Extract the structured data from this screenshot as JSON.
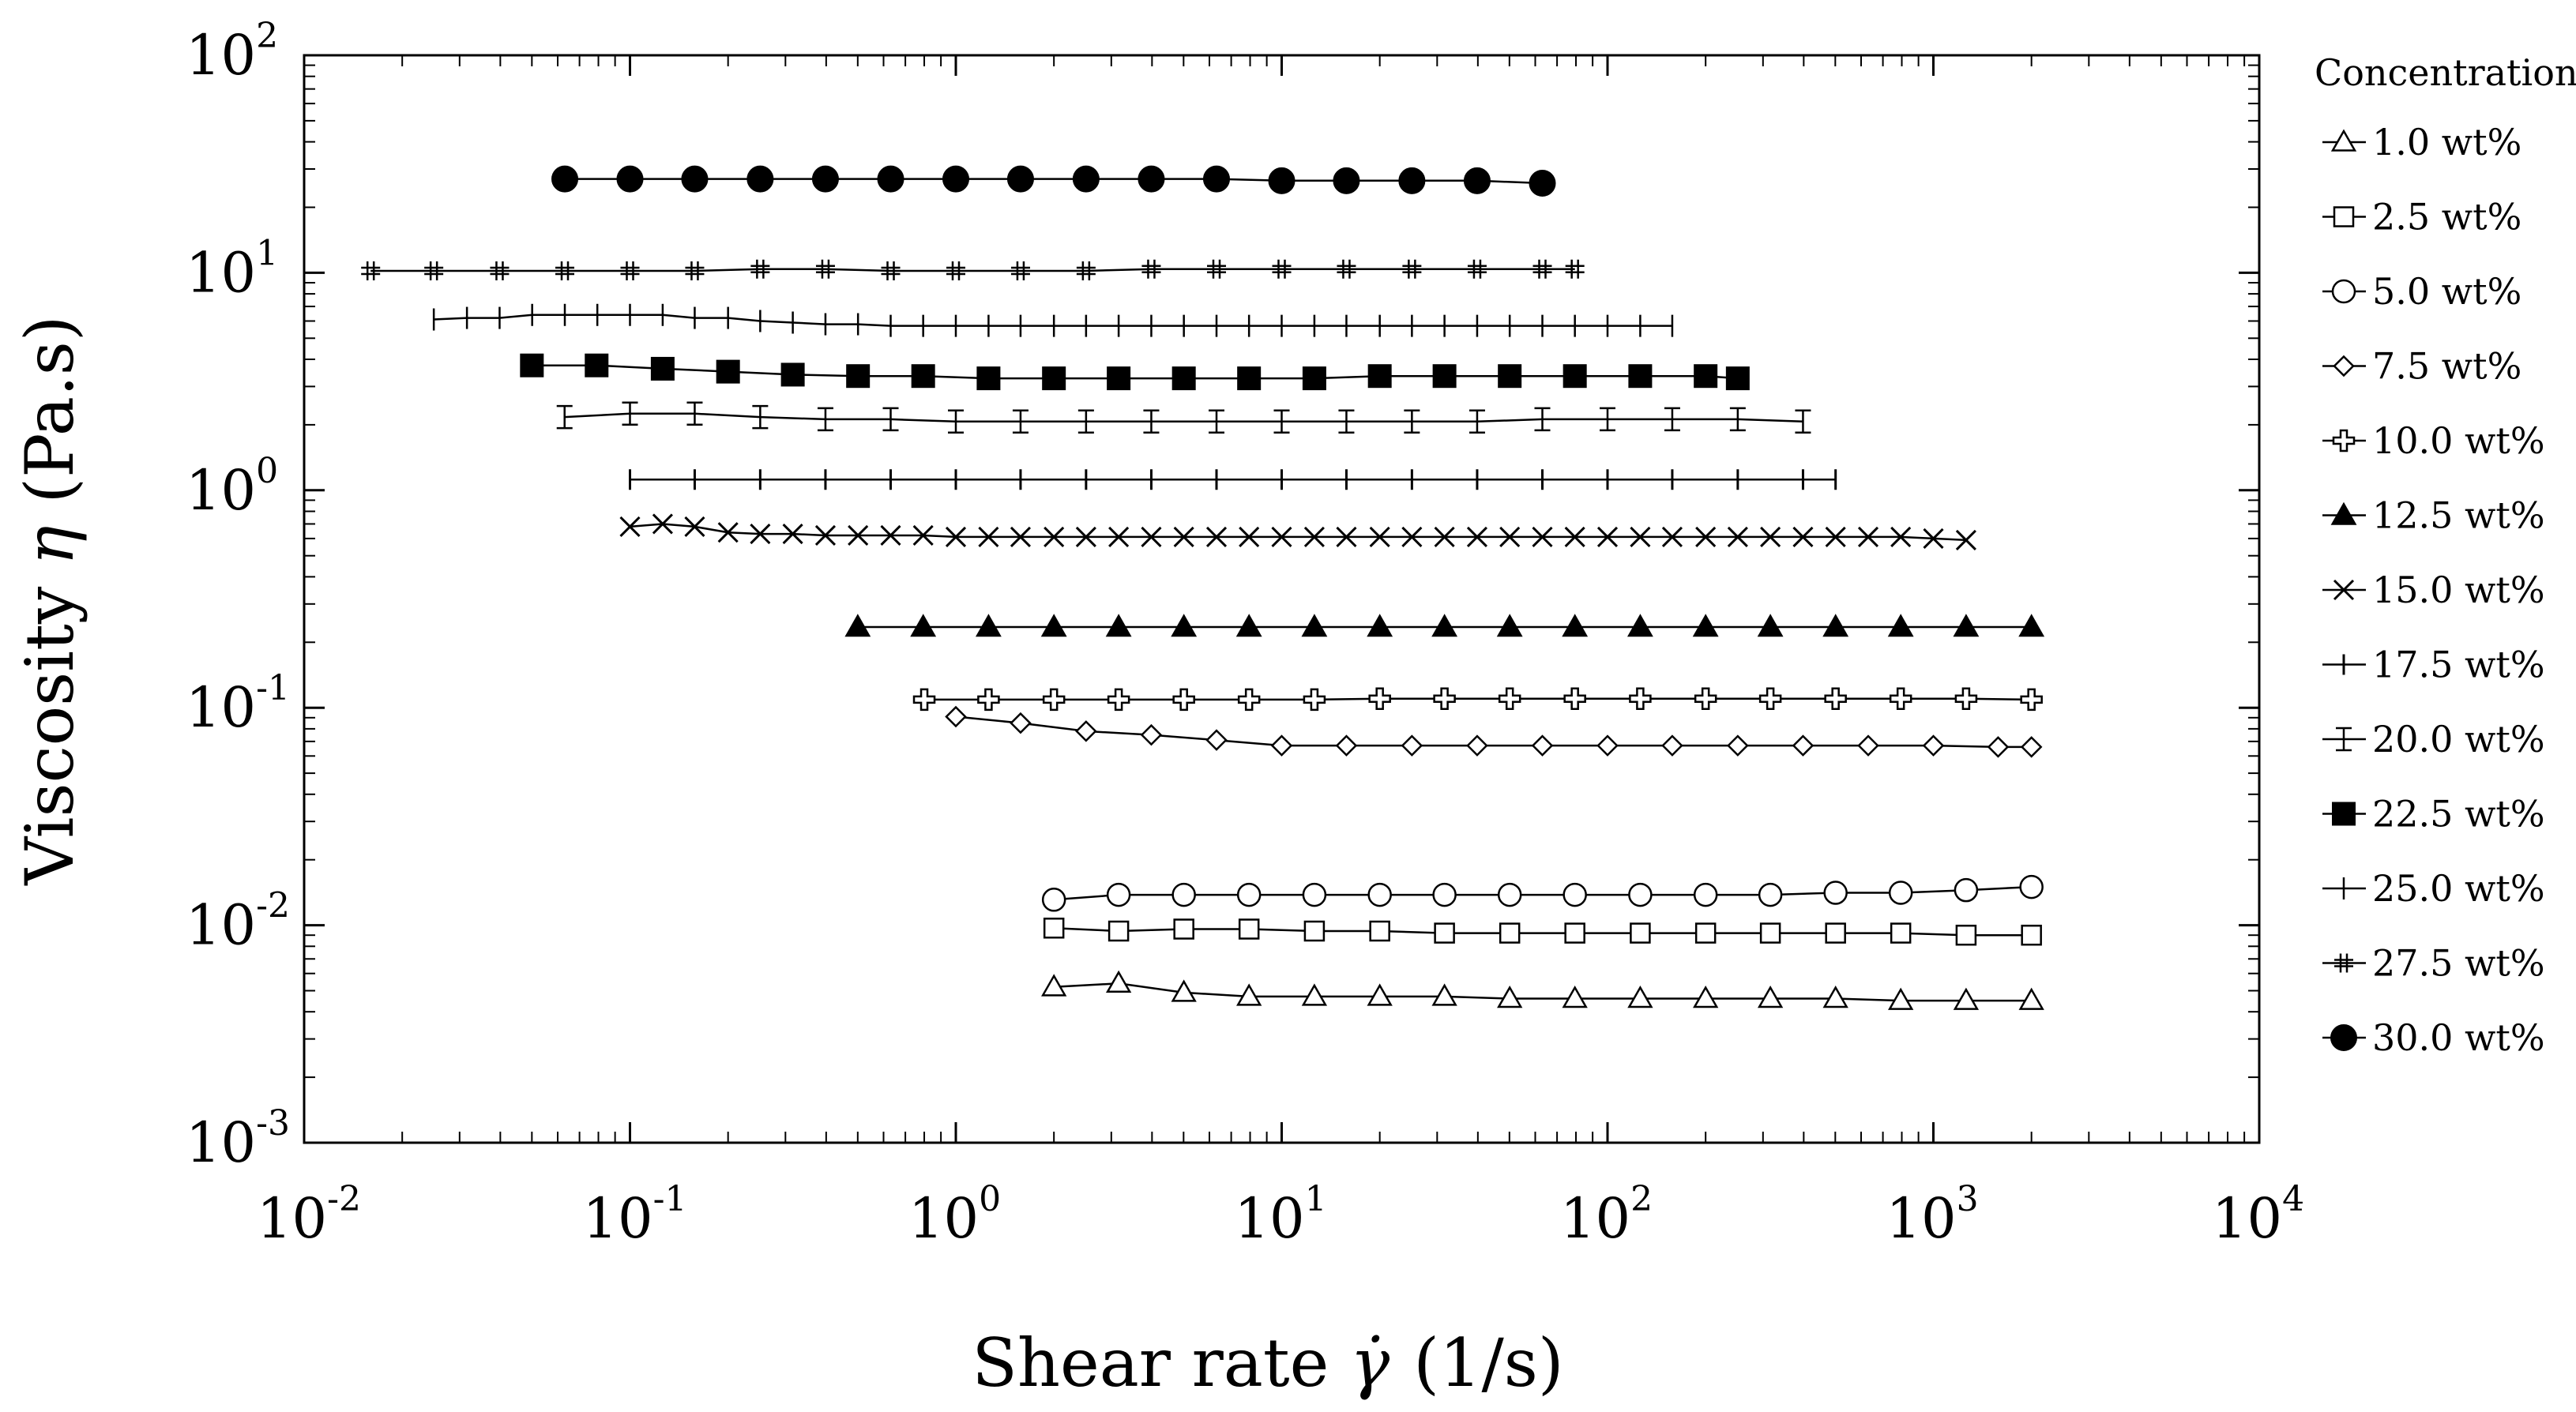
{
  "chart_data": {
    "type": "scatter",
    "x_scale": "log",
    "y_scale": "log",
    "xlim": [
      0.01,
      10000
    ],
    "ylim": [
      0.001,
      100
    ],
    "x_tick_labels": [
      {
        "base": "10",
        "exp": "-2"
      },
      {
        "base": "10",
        "exp": "-1"
      },
      {
        "base": "10",
        "exp": "0"
      },
      {
        "base": "10",
        "exp": "1"
      },
      {
        "base": "10",
        "exp": "2"
      },
      {
        "base": "10",
        "exp": "3"
      },
      {
        "base": "10",
        "exp": "4"
      }
    ],
    "y_tick_labels": [
      {
        "base": "10",
        "exp": "-3"
      },
      {
        "base": "10",
        "exp": "-2"
      },
      {
        "base": "10",
        "exp": "-1"
      },
      {
        "base": "10",
        "exp": "0"
      },
      {
        "base": "10",
        "exp": "1"
      },
      {
        "base": "10",
        "exp": "2"
      }
    ],
    "xlabel": {
      "prefix": "Shear rate ",
      "symbol": "γ̇",
      "unit": "(1/s)"
    },
    "ylabel": {
      "prefix": "Viscosity ",
      "symbol": "η",
      "unit": "(Pa.s)"
    },
    "legend": {
      "title": "Concentration",
      "position": "right"
    },
    "grid": false,
    "series": [
      {
        "name": "1.0 wt%",
        "marker": "triangle-open",
        "x": [
          2,
          3.16,
          5.01,
          7.94,
          12.6,
          20,
          31.6,
          50.1,
          79.4,
          126,
          200,
          316,
          501,
          794,
          1260,
          2000
        ],
        "y": [
          0.0052,
          0.0054,
          0.0049,
          0.0047,
          0.0047,
          0.0047,
          0.0047,
          0.0046,
          0.0046,
          0.0046,
          0.0046,
          0.0046,
          0.0046,
          0.0045,
          0.0045,
          0.0045
        ]
      },
      {
        "name": "2.5 wt%",
        "marker": "square-open",
        "x": [
          2,
          3.16,
          5.01,
          7.94,
          12.6,
          20,
          31.6,
          50.1,
          79.4,
          126,
          200,
          316,
          501,
          794,
          1260,
          2000
        ],
        "y": [
          0.0097,
          0.0094,
          0.0096,
          0.0096,
          0.0094,
          0.0094,
          0.0092,
          0.0092,
          0.0092,
          0.0092,
          0.0092,
          0.0092,
          0.0092,
          0.0092,
          0.009,
          0.009
        ]
      },
      {
        "name": "5.0 wt%",
        "marker": "circle-open",
        "x": [
          2,
          3.16,
          5.01,
          7.94,
          12.6,
          20,
          31.6,
          50.1,
          79.4,
          126,
          200,
          316,
          501,
          794,
          1260,
          2000
        ],
        "y": [
          0.0131,
          0.0138,
          0.0138,
          0.0138,
          0.0138,
          0.0138,
          0.0138,
          0.0138,
          0.0138,
          0.0138,
          0.0138,
          0.0138,
          0.0141,
          0.0141,
          0.0145,
          0.015
        ]
      },
      {
        "name": "7.5 wt%",
        "marker": "diamond-open",
        "x": [
          1,
          1.58,
          2.51,
          3.98,
          6.31,
          10,
          15.8,
          25.1,
          39.8,
          63.1,
          100,
          158,
          251,
          398,
          631,
          1000,
          1580,
          2000
        ],
        "y": [
          0.091,
          0.085,
          0.078,
          0.075,
          0.071,
          0.067,
          0.067,
          0.067,
          0.067,
          0.067,
          0.067,
          0.067,
          0.067,
          0.067,
          0.067,
          0.067,
          0.066,
          0.066
        ]
      },
      {
        "name": "10.0 wt%",
        "marker": "cross-open",
        "x": [
          0.8,
          1.26,
          2,
          3.16,
          5.01,
          7.94,
          12.6,
          20,
          31.6,
          50.1,
          79.4,
          126,
          200,
          316,
          501,
          794,
          1260,
          2000
        ],
        "y": [
          0.109,
          0.109,
          0.109,
          0.109,
          0.109,
          0.109,
          0.109,
          0.11,
          0.11,
          0.11,
          0.11,
          0.11,
          0.11,
          0.11,
          0.11,
          0.11,
          0.11,
          0.109
        ]
      },
      {
        "name": "12.5 wt%",
        "marker": "triangle-filled",
        "x": [
          0.5,
          0.794,
          1.26,
          2,
          3.16,
          5.01,
          7.94,
          12.6,
          20,
          31.6,
          50.1,
          79.4,
          126,
          200,
          316,
          501,
          794,
          1260,
          2000
        ],
        "y": [
          0.235,
          0.235,
          0.235,
          0.235,
          0.235,
          0.235,
          0.235,
          0.235,
          0.235,
          0.235,
          0.235,
          0.235,
          0.235,
          0.235,
          0.235,
          0.235,
          0.235,
          0.235,
          0.235
        ]
      },
      {
        "name": "15.0 wt%",
        "marker": "x",
        "x": [
          0.1,
          0.126,
          0.158,
          0.2,
          0.251,
          0.316,
          0.398,
          0.501,
          0.631,
          0.794,
          1,
          1.26,
          1.58,
          2,
          2.51,
          3.16,
          3.98,
          5.01,
          6.31,
          7.94,
          10,
          12.6,
          15.8,
          20,
          25.1,
          31.6,
          39.8,
          50.1,
          63.1,
          79.4,
          100,
          126,
          158,
          200,
          251,
          316,
          398,
          501,
          631,
          794,
          1000,
          1260
        ],
        "y": [
          0.68,
          0.7,
          0.68,
          0.64,
          0.63,
          0.63,
          0.62,
          0.62,
          0.62,
          0.62,
          0.61,
          0.61,
          0.61,
          0.61,
          0.61,
          0.61,
          0.61,
          0.61,
          0.61,
          0.61,
          0.61,
          0.61,
          0.61,
          0.61,
          0.61,
          0.61,
          0.61,
          0.61,
          0.61,
          0.61,
          0.61,
          0.61,
          0.61,
          0.61,
          0.61,
          0.61,
          0.61,
          0.61,
          0.61,
          0.61,
          0.6,
          0.59
        ]
      },
      {
        "name": "17.5 wt%",
        "marker": "plus",
        "x": [
          0.1,
          0.158,
          0.251,
          0.398,
          0.631,
          1,
          1.58,
          2.51,
          3.98,
          6.31,
          10,
          15.8,
          25.1,
          39.8,
          63.1,
          100,
          158,
          251,
          398,
          501
        ],
        "y": [
          1.12,
          1.12,
          1.12,
          1.12,
          1.12,
          1.12,
          1.12,
          1.12,
          1.12,
          1.12,
          1.12,
          1.12,
          1.12,
          1.12,
          1.12,
          1.12,
          1.12,
          1.12,
          1.12,
          1.12
        ]
      },
      {
        "name": "20.0 wt%",
        "marker": "ibeam",
        "x": [
          0.063,
          0.1,
          0.158,
          0.251,
          0.398,
          0.631,
          1,
          1.58,
          2.51,
          3.98,
          6.31,
          10,
          15.8,
          25.1,
          39.8,
          63.1,
          100,
          158,
          251,
          398
        ],
        "y": [
          2.17,
          2.25,
          2.25,
          2.17,
          2.12,
          2.12,
          2.07,
          2.07,
          2.07,
          2.07,
          2.07,
          2.07,
          2.07,
          2.07,
          2.07,
          2.12,
          2.12,
          2.12,
          2.12,
          2.07
        ]
      },
      {
        "name": "22.5 wt%",
        "marker": "square-filled",
        "x": [
          0.05,
          0.079,
          0.126,
          0.2,
          0.316,
          0.501,
          0.794,
          1.26,
          2,
          3.16,
          5.01,
          7.94,
          12.6,
          20,
          31.6,
          50.1,
          79.4,
          126,
          200,
          251
        ],
        "y": [
          3.75,
          3.75,
          3.62,
          3.51,
          3.4,
          3.35,
          3.35,
          3.27,
          3.27,
          3.27,
          3.27,
          3.27,
          3.27,
          3.35,
          3.35,
          3.35,
          3.35,
          3.35,
          3.35,
          3.27
        ]
      },
      {
        "name": "25.0 wt%",
        "marker": "ibeam-horizontal",
        "x": [
          0.025,
          0.0316,
          0.0398,
          0.0501,
          0.0631,
          0.0794,
          0.1,
          0.126,
          0.158,
          0.2,
          0.251,
          0.316,
          0.398,
          0.501,
          0.631,
          0.794,
          1,
          1.26,
          1.58,
          2,
          2.51,
          3.16,
          3.98,
          5.01,
          6.31,
          7.94,
          10,
          12.6,
          15.8,
          20,
          25.1,
          31.6,
          39.8,
          50.1,
          63.1,
          79.4,
          100,
          126,
          158
        ],
        "y": [
          6.1,
          6.2,
          6.2,
          6.4,
          6.4,
          6.4,
          6.4,
          6.4,
          6.2,
          6.2,
          6.0,
          5.9,
          5.8,
          5.8,
          5.7,
          5.7,
          5.7,
          5.7,
          5.7,
          5.7,
          5.7,
          5.7,
          5.7,
          5.7,
          5.7,
          5.7,
          5.7,
          5.7,
          5.7,
          5.7,
          5.7,
          5.7,
          5.7,
          5.7,
          5.7,
          5.7,
          5.7,
          5.7,
          5.7
        ]
      },
      {
        "name": "27.5 wt%",
        "marker": "hash",
        "x": [
          0.016,
          0.025,
          0.0398,
          0.0631,
          0.1,
          0.158,
          0.251,
          0.398,
          0.631,
          1,
          1.58,
          2.51,
          3.98,
          6.31,
          10,
          15.8,
          25.1,
          39.8,
          63.1,
          79.4
        ],
        "y": [
          10.2,
          10.2,
          10.2,
          10.2,
          10.2,
          10.2,
          10.4,
          10.4,
          10.2,
          10.2,
          10.2,
          10.2,
          10.4,
          10.4,
          10.4,
          10.4,
          10.4,
          10.4,
          10.4,
          10.4
        ]
      },
      {
        "name": "30.0 wt%",
        "marker": "circle-filled",
        "x": [
          0.0631,
          0.1,
          0.158,
          0.251,
          0.398,
          0.631,
          1,
          1.58,
          2.51,
          3.98,
          6.31,
          10,
          15.8,
          25.1,
          39.8,
          63.1
        ],
        "y": [
          27.0,
          27.0,
          27.0,
          27.0,
          27.0,
          27.0,
          27.0,
          27.0,
          27.0,
          27.0,
          27.0,
          26.5,
          26.5,
          26.5,
          26.5,
          25.8
        ]
      }
    ]
  }
}
